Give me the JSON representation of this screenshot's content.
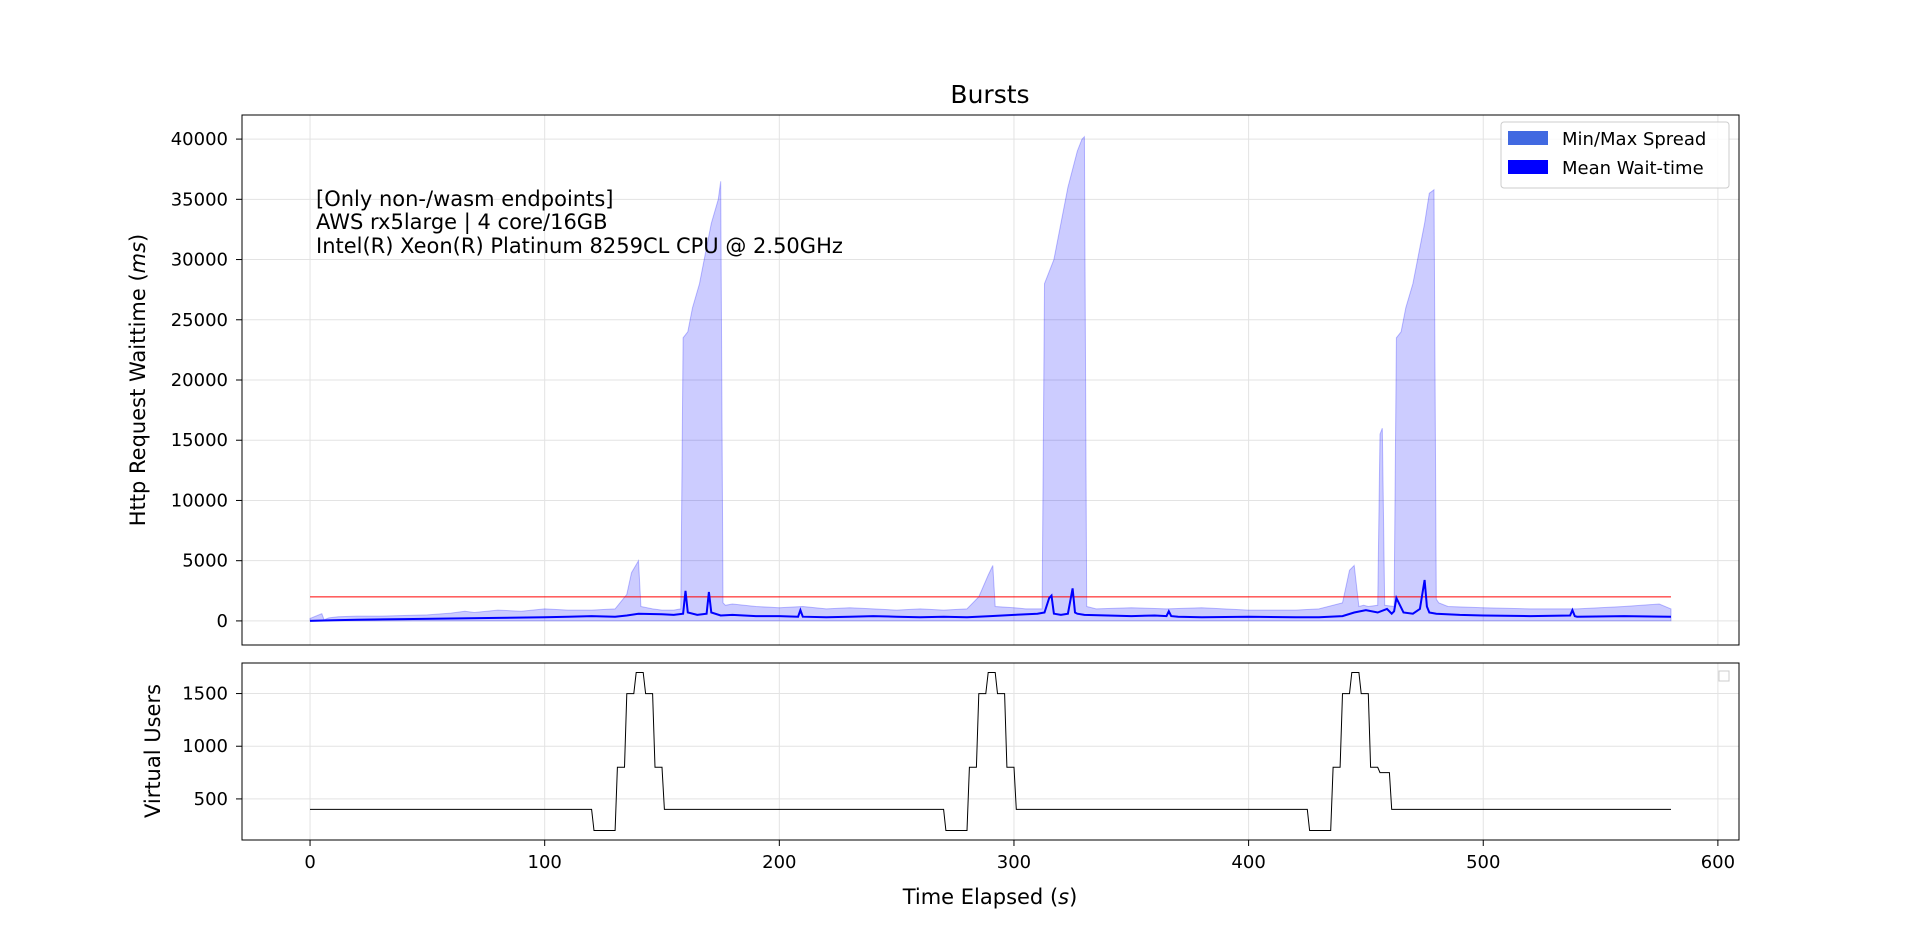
{
  "chart_data": [
    {
      "type": "line",
      "title": "Bursts",
      "ylabel": "Http Request Waittime (ms)",
      "ylabel_main": "Http Request Waittime (",
      "ylabel_unit": "ms",
      "ylabel_close": ")",
      "ylim": [
        -2000,
        42000
      ],
      "yticks": [
        0,
        5000,
        10000,
        15000,
        20000,
        25000,
        30000,
        35000,
        40000
      ],
      "xlim": [
        -29,
        609
      ],
      "grid": true,
      "legend_placement": "top-right",
      "legend": [
        {
          "label": "Min/Max Spread",
          "color": "#4169e1"
        },
        {
          "label": "Mean Wait-time",
          "color": "#0000ff"
        }
      ],
      "annotation": [
        "[Only non-/wasm endpoints]",
        "AWS rx5large | 4 core/16GB",
        "Intel(R) Xeon(R) Platinum 8259CL CPU @ 2.50GHz"
      ],
      "threshold": {
        "y": 2000,
        "x": [
          0,
          580
        ],
        "color": "#ff0000"
      },
      "series": [
        {
          "name": "Min/Max Spread",
          "kind": "band",
          "color": "#0000ff",
          "x": [
            0,
            5,
            6,
            8,
            12,
            20,
            30,
            40,
            50,
            60,
            66,
            70,
            80,
            90,
            100,
            110,
            120,
            130,
            135,
            137,
            140,
            141,
            146,
            150,
            155,
            158,
            159,
            161,
            163,
            166,
            168,
            171,
            174,
            175,
            176,
            177,
            180,
            185,
            190,
            200,
            210,
            220,
            230,
            240,
            250,
            260,
            270,
            280,
            285,
            289,
            291,
            292,
            300,
            305,
            310,
            312,
            313,
            315,
            317,
            320,
            323,
            325,
            327,
            329,
            330,
            331,
            335,
            350,
            365,
            380,
            400,
            420,
            430,
            440,
            443,
            445,
            447,
            449,
            451,
            455,
            456,
            457,
            458,
            462,
            463,
            465,
            467,
            470,
            473,
            475,
            477,
            479,
            480,
            481,
            485,
            500,
            520,
            540,
            560,
            575,
            580
          ],
          "max": [
            200,
            600,
            100,
            250,
            350,
            400,
            400,
            450,
            500,
            650,
            800,
            700,
            900,
            800,
            1000,
            900,
            900,
            1000,
            2200,
            4000,
            5000,
            1200,
            1000,
            900,
            900,
            1000,
            23500,
            24000,
            26000,
            28000,
            30000,
            33000,
            35000,
            36500,
            1500,
            1300,
            1400,
            1300,
            1200,
            1100,
            1200,
            1000,
            1100,
            1000,
            900,
            1000,
            900,
            1000,
            2000,
            3800,
            4600,
            1200,
            1100,
            1000,
            1000,
            1000,
            28000,
            29000,
            30000,
            33000,
            36000,
            37500,
            39000,
            40000,
            40200,
            1200,
            1000,
            1100,
            1000,
            1100,
            900,
            900,
            1000,
            1500,
            4200,
            4600,
            1200,
            1300,
            1200,
            1300,
            15500,
            16000,
            1300,
            1200,
            23500,
            24000,
            26000,
            28000,
            31000,
            33000,
            35500,
            35800,
            1800,
            1500,
            1200,
            1100,
            1000,
            1000,
            1200,
            1400,
            1000
          ],
          "min": [
            0,
            0,
            0,
            0,
            0,
            0,
            0,
            0,
            0,
            0,
            0,
            0,
            0,
            0,
            0,
            0,
            0,
            0,
            0,
            0,
            0,
            0,
            0,
            0,
            0,
            0,
            0,
            0,
            0,
            0,
            0,
            0,
            0,
            0,
            0,
            0,
            0,
            0,
            0,
            0,
            0,
            0,
            0,
            0,
            0,
            0,
            0,
            0,
            0,
            0,
            0,
            0,
            0,
            0,
            0,
            0,
            0,
            0,
            0,
            0,
            0,
            0,
            0,
            0,
            0,
            0,
            0,
            0,
            0,
            0,
            0,
            0,
            0,
            0,
            0,
            0,
            0,
            0,
            0,
            0,
            0,
            0,
            0,
            0,
            0,
            0,
            0,
            0,
            0,
            0,
            0,
            0,
            0,
            0,
            0,
            0,
            0,
            0,
            0,
            0,
            0
          ]
        },
        {
          "name": "Mean Wait-time",
          "kind": "line",
          "color": "#0000ff",
          "x": [
            0,
            10,
            20,
            40,
            60,
            80,
            100,
            110,
            120,
            130,
            135,
            140,
            150,
            155,
            159,
            160,
            161,
            165,
            169,
            170,
            171,
            175,
            180,
            185,
            190,
            200,
            208,
            209,
            210,
            220,
            230,
            240,
            250,
            260,
            270,
            280,
            290,
            300,
            310,
            313,
            315,
            316,
            317,
            320,
            323,
            325,
            326,
            327,
            330,
            340,
            350,
            360,
            365,
            366,
            367,
            370,
            380,
            400,
            420,
            430,
            440,
            445,
            450,
            455,
            459,
            461,
            462,
            463,
            466,
            470,
            473,
            475,
            476,
            477,
            480,
            490,
            500,
            520,
            537,
            538,
            539,
            540,
            560,
            580
          ],
          "y": [
            0,
            50,
            100,
            150,
            200,
            250,
            300,
            350,
            400,
            350,
            450,
            600,
            550,
            500,
            600,
            2500,
            700,
            500,
            600,
            2400,
            700,
            450,
            500,
            450,
            400,
            400,
            350,
            900,
            350,
            300,
            350,
            400,
            350,
            300,
            350,
            300,
            400,
            500,
            600,
            700,
            1900,
            2100,
            600,
            500,
            600,
            2700,
            700,
            600,
            500,
            450,
            400,
            450,
            400,
            800,
            400,
            350,
            300,
            350,
            300,
            300,
            400,
            700,
            900,
            700,
            1000,
            600,
            800,
            1900,
            700,
            600,
            1000,
            3400,
            1200,
            700,
            600,
            500,
            450,
            400,
            450,
            900,
            400,
            350,
            400,
            350
          ]
        }
      ]
    },
    {
      "type": "line",
      "ylabel": "Virtual Users",
      "xlabel": "Time Elapsed (s)",
      "xlabel_main": "Time Elapsed (",
      "xlabel_unit": "s",
      "xlabel_close": ")",
      "ylim": [
        110,
        1790
      ],
      "yticks": [
        500,
        1000,
        1500
      ],
      "xlim": [
        -29,
        609
      ],
      "xticks": [
        0,
        100,
        200,
        300,
        400,
        500,
        600
      ],
      "grid": true,
      "legend_placement": "top-right",
      "series": [
        {
          "kind": "line",
          "color": "#000000",
          "x": [
            0,
            120,
            121,
            130,
            131,
            134,
            135,
            138,
            139,
            142,
            143,
            146,
            147,
            150,
            151,
            270,
            271,
            280,
            281,
            284,
            285,
            288,
            289,
            292,
            293,
            296,
            297,
            300,
            301,
            425,
            426,
            435,
            436,
            439,
            440,
            443,
            444,
            447,
            448,
            451,
            452,
            455,
            456,
            458,
            459,
            460,
            461,
            580
          ],
          "y": [
            400,
            400,
            200,
            200,
            800,
            800,
            1500,
            1500,
            1700,
            1700,
            1500,
            1500,
            800,
            800,
            400,
            400,
            200,
            200,
            800,
            800,
            1500,
            1500,
            1700,
            1700,
            1500,
            1500,
            800,
            800,
            400,
            400,
            200,
            200,
            800,
            800,
            1500,
            1500,
            1700,
            1700,
            1500,
            1500,
            800,
            800,
            750,
            750,
            750,
            750,
            400,
            400
          ]
        }
      ]
    }
  ]
}
